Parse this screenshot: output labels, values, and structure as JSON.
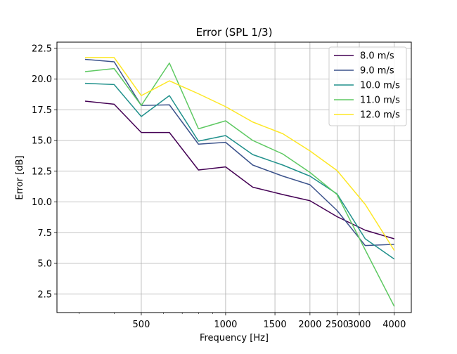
{
  "chart_data": {
    "type": "line",
    "title": "Error (SPL 1/3)",
    "xlabel": "Frequency [Hz]",
    "ylabel": "Error [dB]",
    "xscale": "log",
    "xlim": [
      250,
      4600
    ],
    "ylim": [
      1.0,
      23.0
    ],
    "x": [
      315,
      400,
      500,
      630,
      800,
      1000,
      1250,
      1600,
      2000,
      2500,
      3150,
      4000
    ],
    "xticks": [
      500,
      1000,
      1500,
      2000,
      2500,
      3000,
      4000
    ],
    "xtick_labels": [
      "500",
      "1000",
      "1500",
      "2000",
      "2500",
      "3000",
      "4000"
    ],
    "yticks": [
      2.5,
      5.0,
      7.5,
      10.0,
      12.5,
      15.0,
      17.5,
      20.0,
      22.5
    ],
    "ytick_labels": [
      "2.5",
      "5.0",
      "7.5",
      "10.0",
      "12.5",
      "15.0",
      "17.5",
      "20.0",
      "22.5"
    ],
    "grid": true,
    "legend_position": "top-right",
    "series": [
      {
        "name": "8.0 m/s",
        "color": "#440154",
        "values": [
          18.2,
          17.95,
          15.65,
          15.65,
          12.6,
          12.85,
          11.2,
          10.6,
          10.1,
          8.8,
          7.7,
          7.0
        ]
      },
      {
        "name": "9.0 m/s",
        "color": "#3b528b",
        "values": [
          21.6,
          21.4,
          17.85,
          17.9,
          14.7,
          14.85,
          13.0,
          12.1,
          11.4,
          9.3,
          6.45,
          6.55
        ]
      },
      {
        "name": "10.0 m/s",
        "color": "#21918c",
        "values": [
          19.65,
          19.55,
          16.95,
          18.65,
          14.95,
          15.4,
          13.85,
          13.0,
          12.1,
          10.65,
          7.0,
          5.35
        ]
      },
      {
        "name": "11.0 m/s",
        "color": "#5ec962",
        "values": [
          20.6,
          20.85,
          17.85,
          21.3,
          15.95,
          16.6,
          15.0,
          13.9,
          12.4,
          10.6,
          6.1,
          1.5
        ]
      },
      {
        "name": "12.0 m/s",
        "color": "#fde725",
        "values": [
          21.75,
          21.75,
          18.65,
          19.85,
          18.8,
          17.75,
          16.5,
          15.55,
          14.15,
          12.55,
          9.8,
          6.05
        ]
      }
    ]
  }
}
